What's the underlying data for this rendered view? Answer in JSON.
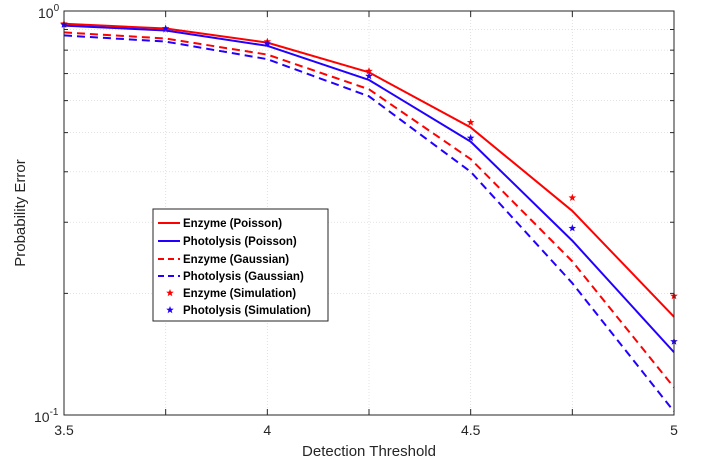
{
  "chart_data": {
    "type": "line",
    "xlabel": "Detection Threshold",
    "ylabel": "Probability Error",
    "yscale": "log",
    "xlim": [
      3.5,
      5
    ],
    "ylim": [
      0.1,
      1
    ],
    "x_ticks": [
      "3.5",
      "4",
      "4.5",
      "5"
    ],
    "y_ticks": [
      {
        "base": "10",
        "exp": "0"
      },
      {
        "base": "10",
        "exp": "-1"
      }
    ],
    "grid": "dotted, major and minor on log axis",
    "legend_position": "center-left",
    "x": [
      3.5,
      3.75,
      4.0,
      4.25,
      4.5,
      4.75,
      5.0
    ],
    "series": [
      {
        "name": "Enzyme (Poisson)",
        "style": "solid",
        "color": "#ff0000",
        "values": [
          0.93,
          0.905,
          0.835,
          0.705,
          0.515,
          0.32,
          0.175
        ]
      },
      {
        "name": "Photolysis (Poisson)",
        "style": "solid",
        "color": "#2200ff",
        "values": [
          0.92,
          0.895,
          0.82,
          0.675,
          0.475,
          0.27,
          0.143
        ]
      },
      {
        "name": "Enzyme (Gaussian)",
        "style": "dashed",
        "color": "#ff0000",
        "values": [
          0.885,
          0.855,
          0.78,
          0.64,
          0.43,
          0.24,
          0.117
        ]
      },
      {
        "name": "Photolysis (Gaussian)",
        "style": "dashed",
        "color": "#2200ff",
        "values": [
          0.87,
          0.84,
          0.76,
          0.615,
          0.4,
          0.212,
          0.102
        ]
      },
      {
        "name": "Enzyme (Simulation)",
        "style": "star",
        "color": "#ff0000",
        "values": [
          0.93,
          0.9,
          0.84,
          0.71,
          0.53,
          0.345,
          0.197
        ]
      },
      {
        "name": "Photolysis (Simulation)",
        "style": "star",
        "color": "#2200ff",
        "values": [
          0.925,
          0.905,
          0.83,
          0.69,
          0.485,
          0.29,
          0.152
        ]
      }
    ]
  }
}
